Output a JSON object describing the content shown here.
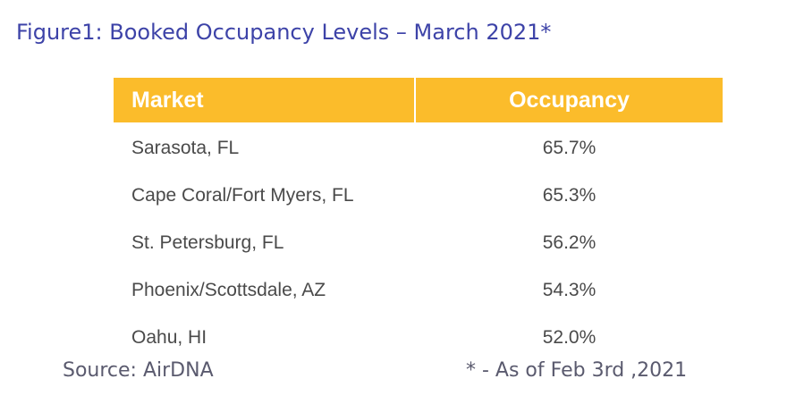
{
  "title": "Figure1: Booked Occupancy Levels – March 2021*",
  "table": {
    "headers": {
      "market": "Market",
      "occupancy": "Occupancy"
    },
    "rows": [
      {
        "market": "Sarasota, FL",
        "occupancy": "65.7%"
      },
      {
        "market": "Cape Coral/Fort Myers, FL",
        "occupancy": "65.3%"
      },
      {
        "market": "St. Petersburg, FL",
        "occupancy": "56.2%"
      },
      {
        "market": "Phoenix/Scottsdale, AZ",
        "occupancy": "54.3%"
      },
      {
        "market": "Oahu, HI",
        "occupancy": "52.0%"
      }
    ]
  },
  "footer": {
    "source": "Source: AirDNA",
    "note": "* - As of Feb 3rd ,2021"
  },
  "colors": {
    "title": "#3d43a8",
    "header_bg": "#fbbc2b",
    "header_text": "#ffffff",
    "body_text": "#4a4a4a"
  }
}
